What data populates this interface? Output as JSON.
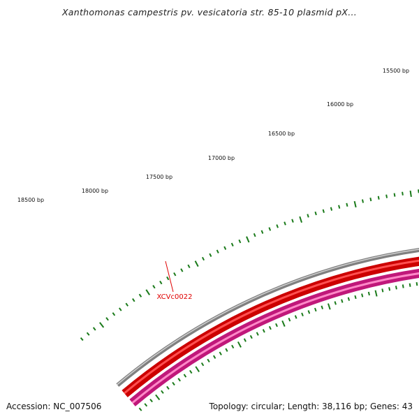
{
  "title": "Xanthomonas campestris pv. vesicatoria str. 85-10 plasmid pX...",
  "footer": {
    "accession": "Accession: NC_007506",
    "summary": "Topology: circular; Length: 38,116 bp; Genes: 43"
  },
  "map": {
    "topology": "circular",
    "length_bp": 38116,
    "gene_count": 43,
    "colors": {
      "backbone": "#808080",
      "forward_gene": "#ff0000",
      "forward_gene_dark": "#cc0000",
      "reverse_gene": "#ff44aa",
      "reverse_gene_dark": "#c0187a",
      "other_gene": "#aaff33",
      "other_gene_dark": "#77bb22",
      "ticks": "#1a7a1a",
      "label": "#e00000"
    },
    "tick_labels": [
      "15500 bp",
      "16000 bp",
      "16500 bp",
      "17000 bp",
      "17500 bp",
      "18000 bp",
      "18500 bp"
    ],
    "gene_label": "XCVc0022"
  }
}
